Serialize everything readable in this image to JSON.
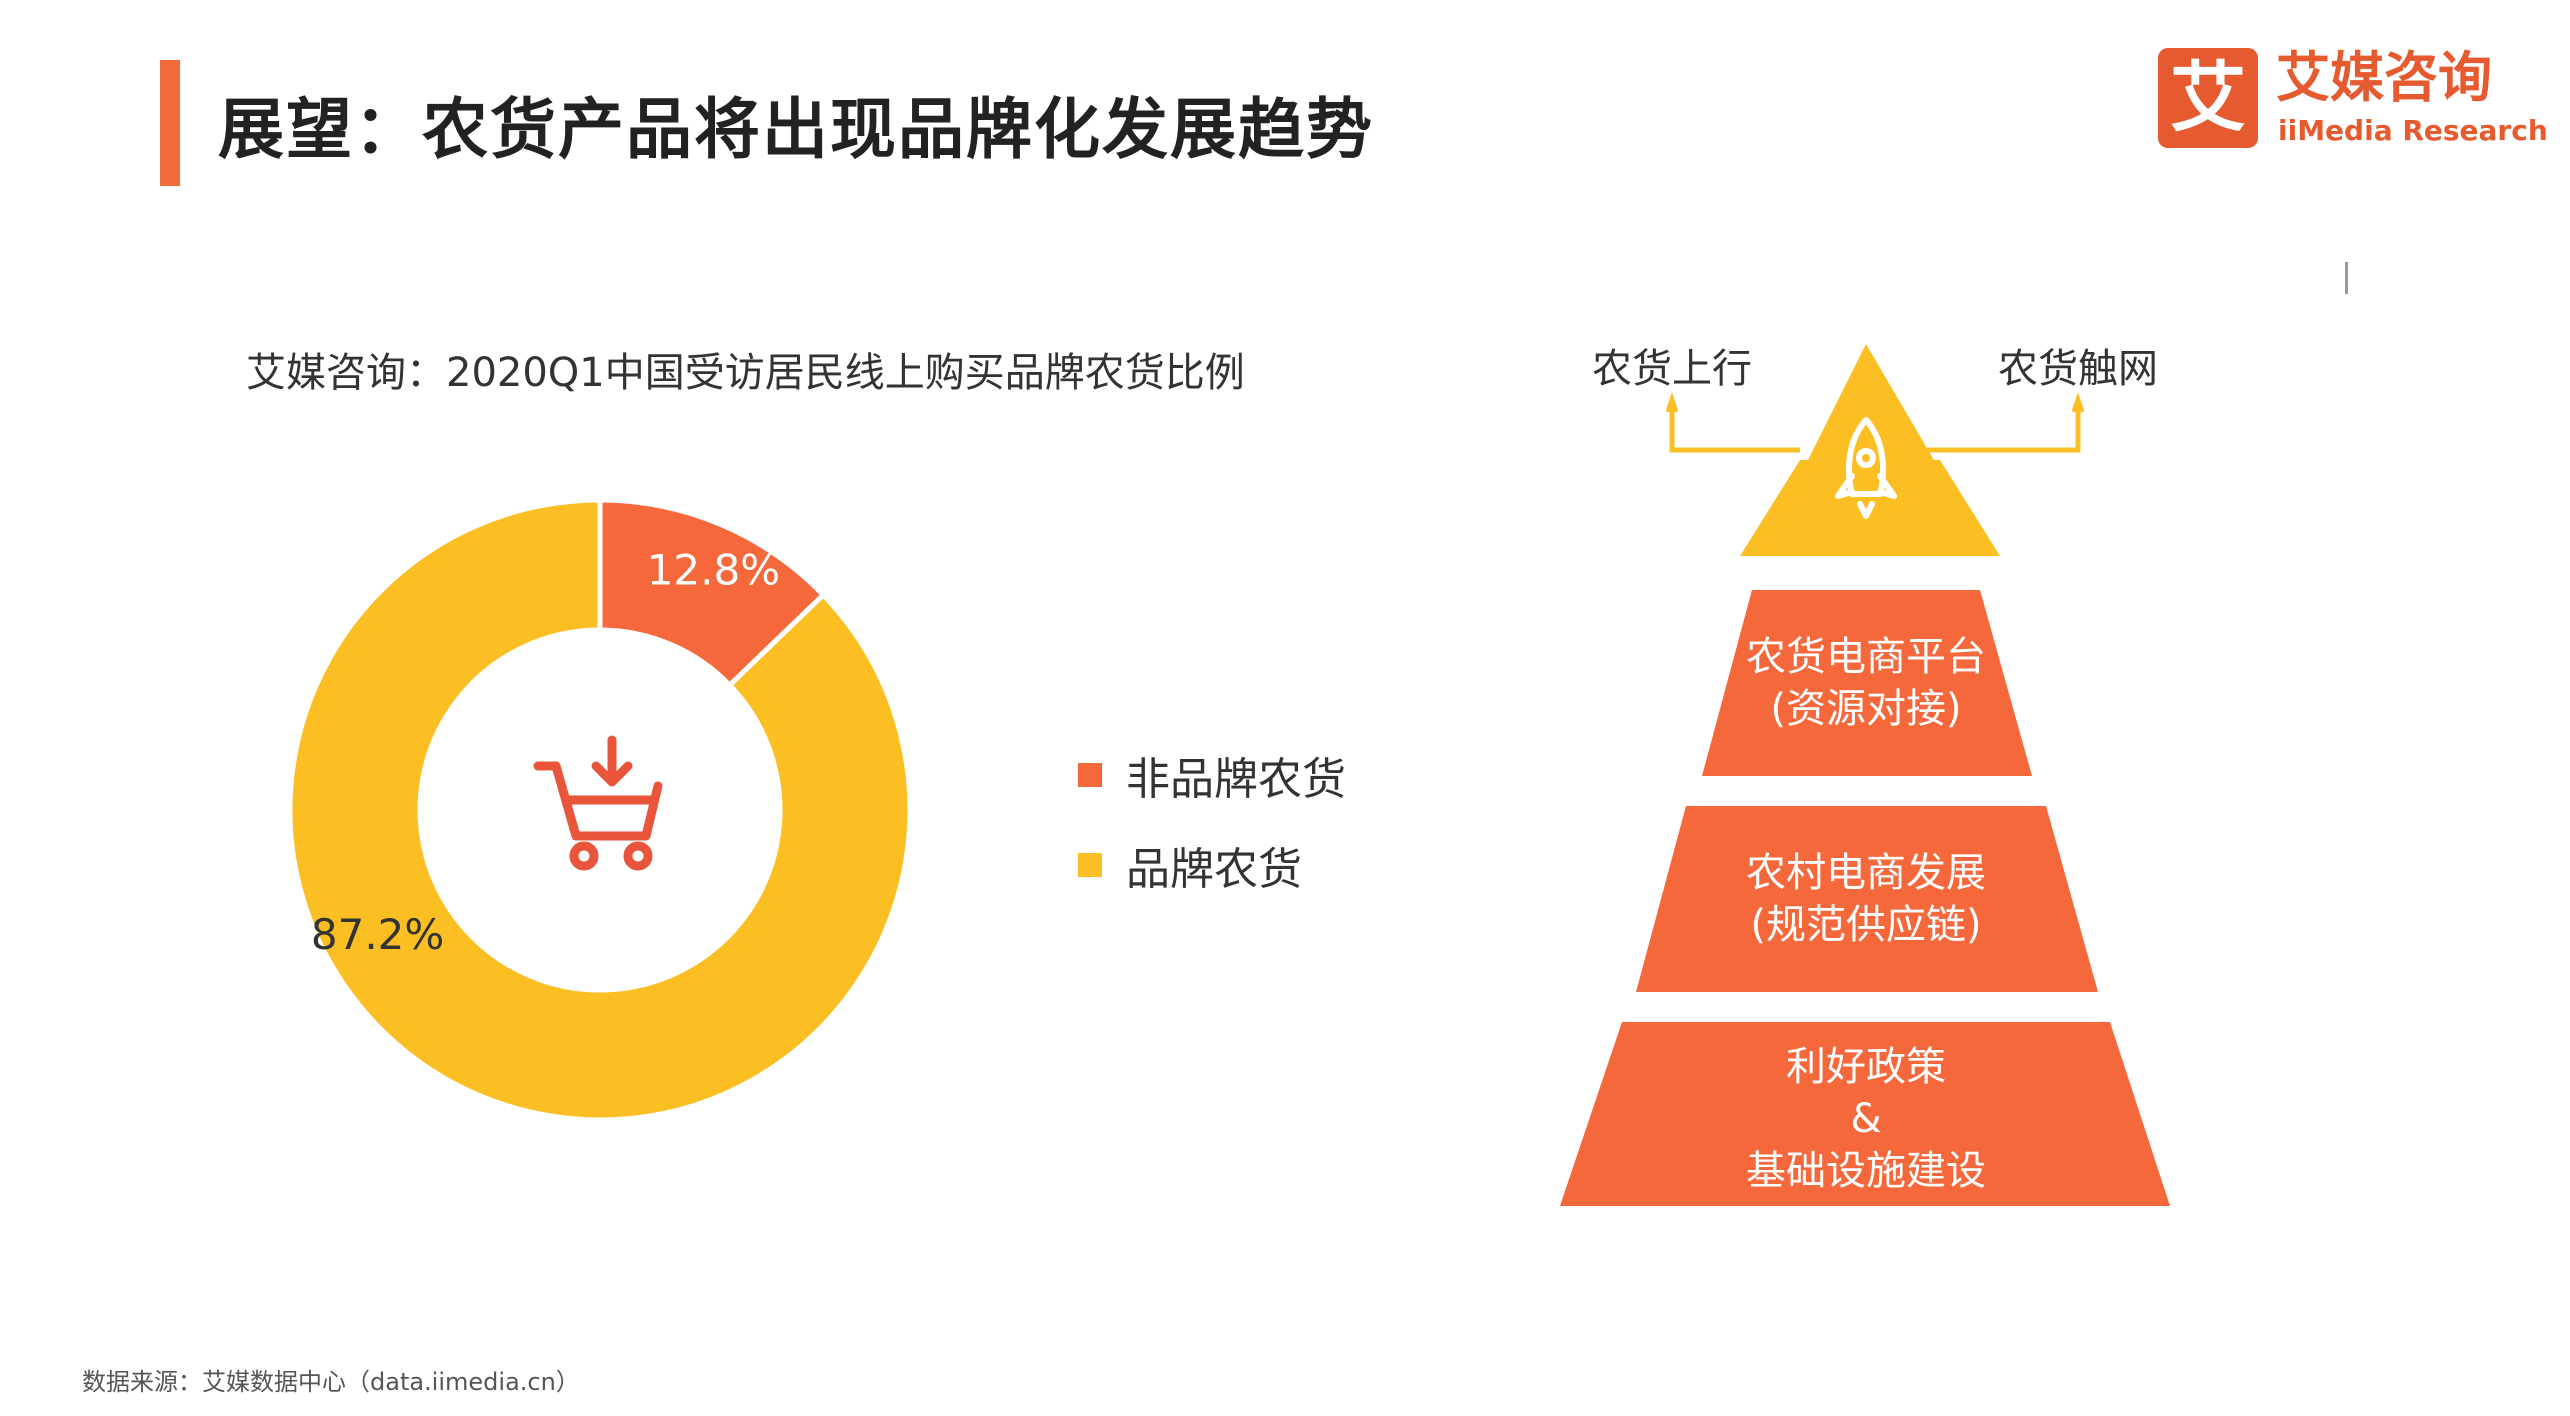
{
  "header": {
    "title": "展望：农货产品将出现品牌化发展趋势",
    "accent_color": "#f26b3a"
  },
  "logo": {
    "mark": "艾",
    "name_cn": "艾媒咨询",
    "name_en": "iiMedia Research",
    "color": "#e55a2e"
  },
  "chart_data": {
    "type": "pie",
    "title": "艾媒咨询：2020Q1中国受访居民线上购买品牌农货比例",
    "slices": [
      {
        "label": "非品牌农货",
        "value": 12.8,
        "value_label": "12.8%",
        "color": "#f4683c"
      },
      {
        "label": "品牌农货",
        "value": 87.2,
        "value_label": "87.2%",
        "color": "#fbbf24"
      }
    ],
    "center_icon": "shopping-cart-icon"
  },
  "legend": {
    "items": [
      {
        "label": "非品牌农货",
        "color": "#f4683c"
      },
      {
        "label": "品牌农货",
        "color": "#fbbf24"
      }
    ]
  },
  "pyramid": {
    "top_icon": "rocket-icon",
    "top_color": "#fbbf24",
    "tier_color": "#f4683c",
    "left_branch": "农货上行",
    "right_branch": "农货触网",
    "tiers": [
      {
        "lines": [
          "农货电商平台",
          "(资源对接)"
        ]
      },
      {
        "lines": [
          "农村电商发展",
          "(规范供应链)"
        ]
      },
      {
        "lines": [
          "利好政策",
          "&",
          "基础设施建设"
        ]
      }
    ]
  },
  "footer": {
    "source": "数据来源：艾媒数据中心（data.iimedia.cn）"
  }
}
